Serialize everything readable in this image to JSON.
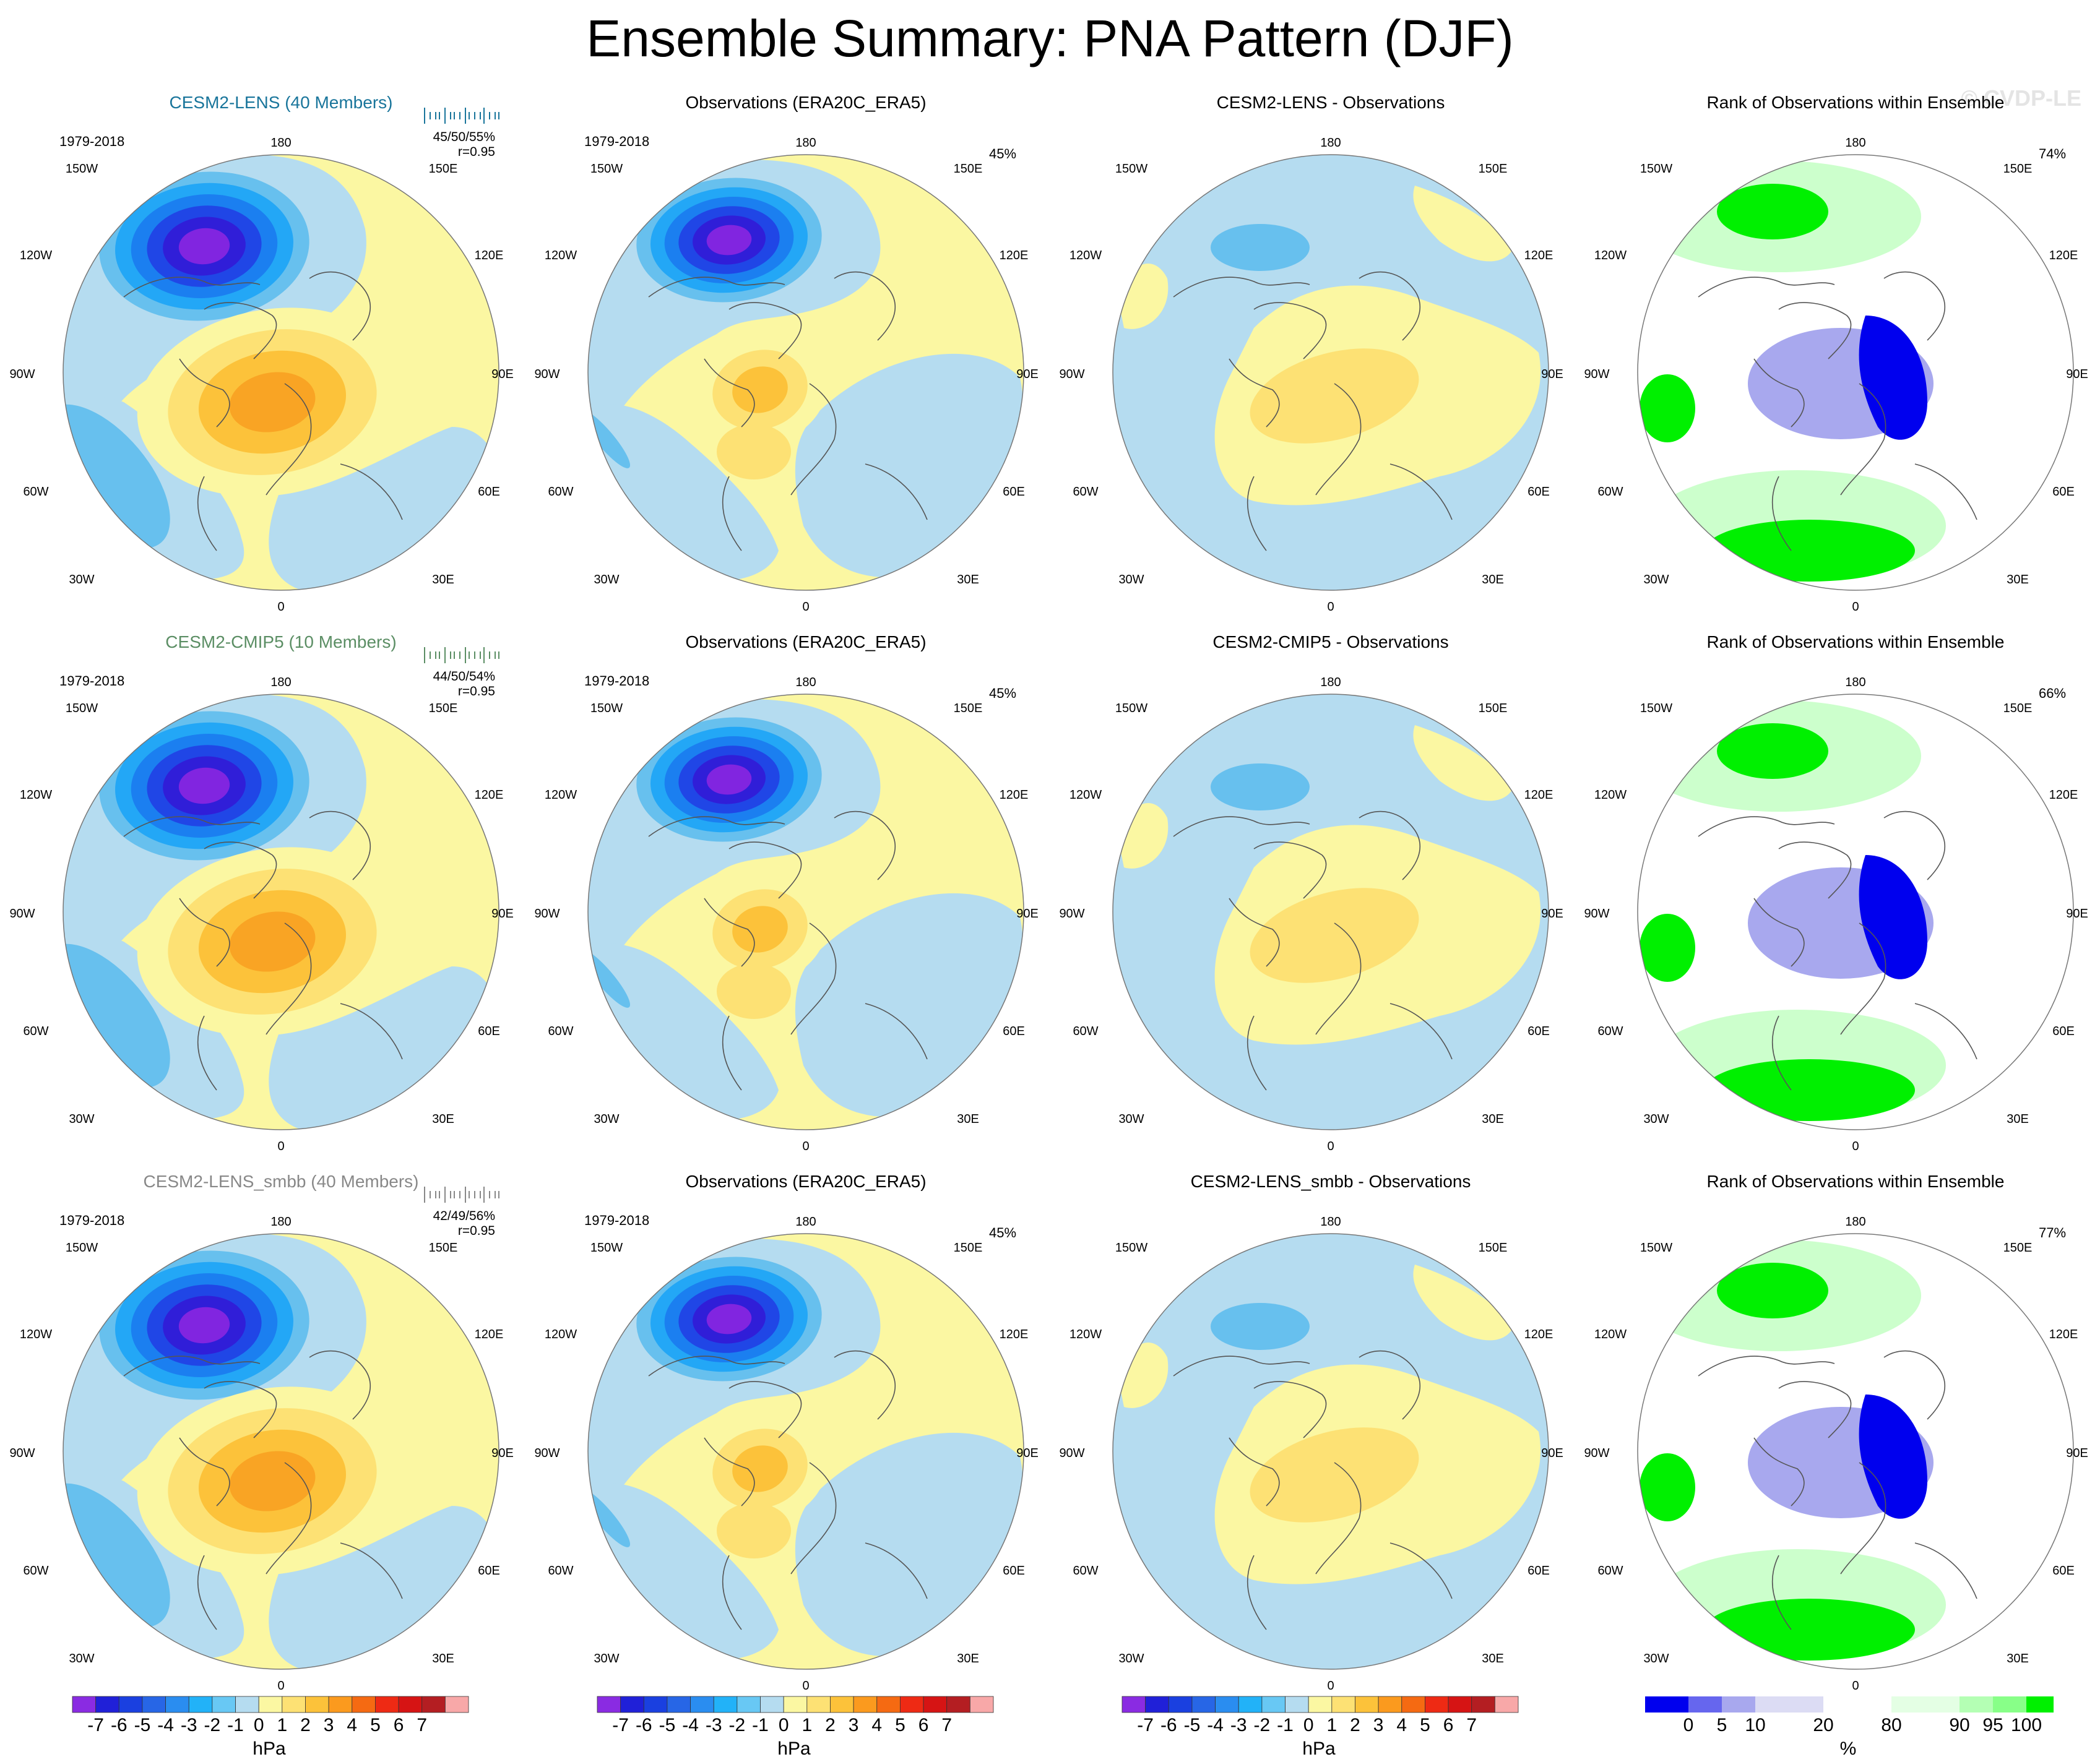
{
  "title": "Ensemble Summary: PNA Pattern (DJF)",
  "watermark": "© CVDP-LE",
  "colors": {
    "land_blue": "#b5dcf0",
    "light_yellow": "#fbf7a2",
    "yellow": "#fde174",
    "orange_light": "#fcc23a",
    "orange": "#f9a424",
    "blue1": "#67c0ee",
    "blue2": "#23a7f6",
    "blue3": "#1b7ff0",
    "blue4": "#2046e6",
    "blue5": "#301ed8",
    "blue6": "#8125e0",
    "green": "#00f000",
    "green_light": "#ccffcc",
    "rank_blue": "#0000ee",
    "rank_blue_light": "#a8a8ee"
  },
  "rows": [
    {
      "model": {
        "title": "CESM2-LENS (40 Members)",
        "title_color": "#19759b",
        "period": "1979-2018",
        "stats_pct": "45/50/55%",
        "stats_r": "r=0.95"
      },
      "obs": {
        "title": "Observations (ERA20C_ERA5)",
        "period": "1979-2018",
        "pct": "45%"
      },
      "diff": {
        "title": "CESM2-LENS - Observations"
      },
      "rank": {
        "title": "Rank of Observations within Ensemble",
        "pct": "74%"
      }
    },
    {
      "model": {
        "title": "CESM2-CMIP5 (10 Members)",
        "title_color": "#5b8e64",
        "period": "1979-2018",
        "stats_pct": "44/50/54%",
        "stats_r": "r=0.95"
      },
      "obs": {
        "title": "Observations (ERA20C_ERA5)",
        "period": "1979-2018",
        "pct": "45%"
      },
      "diff": {
        "title": "CESM2-CMIP5 - Observations"
      },
      "rank": {
        "title": "Rank of Observations within Ensemble",
        "pct": "66%"
      }
    },
    {
      "model": {
        "title": "CESM2-LENS_smbb (40 Members)",
        "title_color": "#888888",
        "period": "1979-2018",
        "stats_pct": "42/49/56%",
        "stats_r": "r=0.95"
      },
      "obs": {
        "title": "Observations (ERA20C_ERA5)",
        "period": "1979-2018",
        "pct": "45%"
      },
      "diff": {
        "title": "CESM2-LENS_smbb - Observations"
      },
      "rank": {
        "title": "Rank of Observations within Ensemble",
        "pct": "77%"
      }
    }
  ],
  "longitude_labels": {
    "top": "180",
    "bottom": "0",
    "ul1": "150W",
    "ur1": "150E",
    "ul2": "120W",
    "ur2": "120E",
    "l": "90W",
    "r": "90E",
    "ll2": "60W",
    "lr2": "60E",
    "ll1": "30W",
    "lr1": "30E"
  },
  "colorbar_hpa": {
    "unit": "hPa",
    "ticks": [
      "-7",
      "-6",
      "-5",
      "-4",
      "-3",
      "-2",
      "-1",
      "0",
      "1",
      "2",
      "3",
      "4",
      "5",
      "6",
      "7"
    ],
    "colors": [
      "#8a2be2",
      "#2020d8",
      "#1a40e0",
      "#2766e6",
      "#2a8df0",
      "#22b2f8",
      "#68c8f4",
      "#b5dcf0",
      "#fbf7a2",
      "#fde174",
      "#fcc23a",
      "#fb9a1e",
      "#f56a12",
      "#ee2a14",
      "#d61414",
      "#b41e22",
      "#f8a8a8"
    ]
  },
  "colorbar_pct": {
    "unit": "%",
    "ticks": [
      "0",
      "5",
      "10",
      "20",
      "80",
      "90",
      "95",
      "100"
    ],
    "colors": [
      "#0000ee",
      "#6666ee",
      "#a8a8ee",
      "#dcdcf4",
      "#ffffff",
      "#e4ffe4",
      "#b4ffb4",
      "#88ff88",
      "#00f000"
    ]
  }
}
